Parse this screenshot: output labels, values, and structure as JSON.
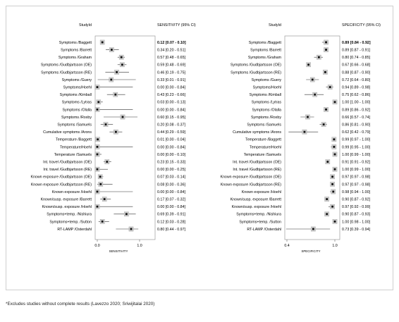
{
  "chart_data": [
    {
      "type": "forest",
      "column_headers": {
        "study": "StudyId",
        "estimate": "SENSITIVITY (95% CI)"
      },
      "xlabel": "SENSITIVITY",
      "xlim": [
        0.0,
        1.0
      ],
      "ticks": [
        "0.0",
        "1.0"
      ],
      "rows": [
        {
          "study": "Symptoms /Baggett",
          "est": 0.12,
          "lo": 0.07,
          "hi": 0.1,
          "label": "0.12 [0.07 - 0.10]"
        },
        {
          "study": "Symptoms /Barrett",
          "est": 0.34,
          "lo": 0.2,
          "hi": 0.51,
          "label": "0.34 [0.20 - 0.51]"
        },
        {
          "study": "Symptoms /Graham",
          "est": 0.57,
          "lo": 0.48,
          "hi": 0.65,
          "label": "0.57 [0.48 - 0.65]"
        },
        {
          "study": "Symptoms /Gudbjartsson (OE)",
          "est": 0.59,
          "lo": 0.48,
          "hi": 0.69,
          "label": "0.59 [0.48 - 0.69]"
        },
        {
          "study": "Symptoms /Gudbjartsson (RE)",
          "est": 0.46,
          "lo": 0.19,
          "hi": 0.75,
          "label": "0.46 [0.19 - 0.75]"
        },
        {
          "study": "Symptoms /Guery",
          "est": 0.33,
          "lo": 0.01,
          "hi": 0.91,
          "label": "0.33 [0.01 - 0.91]"
        },
        {
          "study": "Symptoms/Hoehl",
          "est": 0.0,
          "lo": 0.0,
          "hi": 0.84,
          "label": "0.00 [0.00 - 0.84]"
        },
        {
          "study": "Symptoms /Kimball",
          "est": 0.43,
          "lo": 0.23,
          "hi": 0.66,
          "label": "0.43 [0.23 - 0.66]"
        },
        {
          "study": "Symptoms /Lytras",
          "est": 0.03,
          "lo": 0.0,
          "hi": 0.13,
          "label": "0.03 [0.00 - 0.13]"
        },
        {
          "study": "Symptoms /Olalla",
          "est": 0.0,
          "lo": 0.0,
          "hi": 0.84,
          "label": "0.00 [0.00 - 0.84]"
        },
        {
          "study": "Symptoms /Roxby",
          "est": 0.6,
          "lo": 0.15,
          "hi": 0.95,
          "label": "0.60 [0.15 - 0.95]"
        },
        {
          "study": "Symptoms /Samuels",
          "est": 0.2,
          "lo": 0.08,
          "hi": 0.37,
          "label": "0.20 [0.08 - 0.37]"
        },
        {
          "study": "Cumulative symptoms /Arons",
          "est": 0.44,
          "lo": 0.29,
          "hi": 0.59,
          "label": "0.44 [0.29 - 0.59]"
        },
        {
          "study": "Temperature /Baggett",
          "est": 0.01,
          "lo": 0.0,
          "hi": 0.04,
          "label": "0.01 [0.00 - 0.04]"
        },
        {
          "study": "Temperature/Hoehl",
          "est": 0.0,
          "lo": 0.0,
          "hi": 0.84,
          "label": "0.00 [0.00 - 0.84]"
        },
        {
          "study": "Temperature /Samuels",
          "est": 0.0,
          "lo": 0.0,
          "hi": 0.1,
          "label": "0.00 [0.00 - 0.10]"
        },
        {
          "study": "Int. travel /Gudbjartsson (OE)",
          "est": 0.23,
          "lo": 0.15,
          "hi": 0.33,
          "label": "0.23 [0.15 - 0.33]"
        },
        {
          "study": "Int. travel /Gudbjartsson (RE)",
          "est": 0.0,
          "lo": 0.0,
          "hi": 0.25,
          "label": "0.00 [0.00 - 0.25]"
        },
        {
          "study": "Known exposure /Gudbjartsson (OE)",
          "est": 0.07,
          "lo": 0.03,
          "hi": 0.14,
          "label": "0.07 [0.03 - 0.14]"
        },
        {
          "study": "Known exposure /Gudbjartsson (RE)",
          "est": 0.08,
          "lo": 0.0,
          "hi": 0.36,
          "label": "0.08 [0.00 - 0.36]"
        },
        {
          "study": "Known exposure /Hoehl",
          "est": 0.0,
          "lo": 0.0,
          "hi": 0.84,
          "label": "0.00 [0.00 - 0.84]"
        },
        {
          "study": "Known/susp. exposure /Barrett",
          "est": 0.17,
          "lo": 0.07,
          "hi": 0.32,
          "label": "0.17 [0.07 - 0.32]"
        },
        {
          "study": "Known/susp. exposure /Hoehl",
          "est": 0.0,
          "lo": 0.0,
          "hi": 0.84,
          "label": "0.00 [0.00 - 0.84]"
        },
        {
          "study": "Symptoms+temp. /Nishiura",
          "est": 0.69,
          "lo": 0.39,
          "hi": 0.91,
          "label": "0.69 [0.39 - 0.91]"
        },
        {
          "study": "Symptoms+temp. /Sutton",
          "est": 0.12,
          "lo": 0.03,
          "hi": 0.28,
          "label": "0.12 [0.03 - 0.28]"
        },
        {
          "study": "RT-LAMP /Osterdahl",
          "est": 0.8,
          "lo": 0.44,
          "hi": 0.97,
          "label": "0.80 [0.44 - 0.97]"
        }
      ]
    },
    {
      "type": "forest",
      "column_headers": {
        "study": "StudyId",
        "estimate": "SPECIFICITY (95% CI)"
      },
      "xlabel": "SPECIFICITY",
      "xlim": [
        0.4,
        1.0
      ],
      "ticks": [
        "0.4",
        "1.0"
      ],
      "rows": [
        {
          "study": "Symptoms /Baggett",
          "est": 0.89,
          "lo": 0.84,
          "hi": 0.92,
          "label": "0.89 [0.84 - 0.92]"
        },
        {
          "study": "Symptoms /Barrett",
          "est": 0.89,
          "lo": 0.87,
          "hi": 0.91,
          "label": "0.89 [0.87 - 0.91]"
        },
        {
          "study": "Symptoms /Graham",
          "est": 0.8,
          "lo": 0.74,
          "hi": 0.85,
          "label": "0.80 [0.74 - 0.85]"
        },
        {
          "study": "Symptoms /Gudbjartsson (OE)",
          "est": 0.67,
          "lo": 0.66,
          "hi": 0.68,
          "label": "0.67 [0.66 - 0.68]"
        },
        {
          "study": "Symptoms /Gudbjartsson (RE)",
          "est": 0.88,
          "lo": 0.87,
          "hi": 0.9,
          "label": "0.88 [0.87 - 0.90]"
        },
        {
          "study": "Symptoms /Guery",
          "est": 0.72,
          "lo": 0.64,
          "hi": 0.8,
          "label": "0.72 [0.64 - 0.80]"
        },
        {
          "study": "Symptoms/Hoehl",
          "est": 0.94,
          "lo": 0.89,
          "hi": 0.98,
          "label": "0.94 [0.89 - 0.98]"
        },
        {
          "study": "Symptoms /Kimball",
          "est": 0.75,
          "lo": 0.62,
          "hi": 0.86,
          "label": "0.75 [0.62 - 0.86]"
        },
        {
          "study": "Symptoms /Lytras",
          "est": 1.0,
          "lo": 1.0,
          "hi": 1.0,
          "label": "1.00 [1.00 - 1.00]"
        },
        {
          "study": "Symptoms /Olalla",
          "est": 0.89,
          "lo": 0.86,
          "hi": 0.92,
          "label": "0.89 [0.86 - 0.92]"
        },
        {
          "study": "Symptoms /Roxby",
          "est": 0.66,
          "lo": 0.57,
          "hi": 0.74,
          "label": "0.66 [0.57 - 0.74]"
        },
        {
          "study": "Symptoms /Samuels",
          "est": 0.86,
          "lo": 0.81,
          "hi": 0.9,
          "label": "0.86 [0.81 - 0.90]"
        },
        {
          "study": "Cumulative symptoms /Arons",
          "est": 0.62,
          "lo": 0.42,
          "hi": 0.79,
          "label": "0.62 [0.42 - 0.79]"
        },
        {
          "study": "Temperature /Baggett",
          "est": 0.99,
          "lo": 0.97,
          "hi": 1.0,
          "label": "0.99 [0.97 - 1.00]"
        },
        {
          "study": "Temperature/Hoehl",
          "est": 0.99,
          "lo": 0.95,
          "hi": 1.0,
          "label": "0.99 [0.95 - 1.00]"
        },
        {
          "study": "Temperature /Samuels",
          "est": 1.0,
          "lo": 0.99,
          "hi": 1.0,
          "label": "1.00 [0.99 - 1.00]"
        },
        {
          "study": "Int. travel /Gudbjartsson (OE)",
          "est": 0.91,
          "lo": 0.91,
          "hi": 0.92,
          "label": "0.91 [0.91 - 0.92]"
        },
        {
          "study": "Int. travel /Gudbjartsson (RE)",
          "est": 1.0,
          "lo": 0.99,
          "hi": 1.0,
          "label": "1.00 [0.99 - 1.00]"
        },
        {
          "study": "Known exposure /Gudbjartsson (OE)",
          "est": 0.97,
          "lo": 0.97,
          "hi": 0.98,
          "label": "0.97 [0.97 - 0.98]"
        },
        {
          "study": "Known exposure /Gudbjartsson (RE)",
          "est": 0.97,
          "lo": 0.97,
          "hi": 0.98,
          "label": "0.97 [0.97 - 0.98]"
        },
        {
          "study": "Known exposure /Hoehl",
          "est": 0.98,
          "lo": 0.94,
          "hi": 1.0,
          "label": "0.98 [0.94 - 1.00]"
        },
        {
          "study": "Known/susp. exposure /Barrett",
          "est": 0.9,
          "lo": 0.87,
          "hi": 0.92,
          "label": "0.90 [0.87 - 0.92]"
        },
        {
          "study": "Known/susp. exposure /Hoehl",
          "est": 0.97,
          "lo": 0.92,
          "hi": 0.99,
          "label": "0.97 [0.92 - 0.99]"
        },
        {
          "study": "Symptoms+temp. /Nishiura",
          "est": 0.9,
          "lo": 0.87,
          "hi": 0.93,
          "label": "0.90 [0.87 - 0.93]"
        },
        {
          "study": "Symptoms+temp. /Sutton",
          "est": 1.0,
          "lo": 0.98,
          "hi": 1.0,
          "label": "1.00 [0.98 - 1.00]"
        },
        {
          "study": "RT-LAMP /Osterdahl",
          "est": 0.73,
          "lo": 0.39,
          "hi": 0.94,
          "label": "0.73 [0.39 - 0.94]"
        }
      ]
    }
  ],
  "footnote": "*Excludes studies without complete results (Lavezzo 2020; Sriwijitalai 2020)"
}
